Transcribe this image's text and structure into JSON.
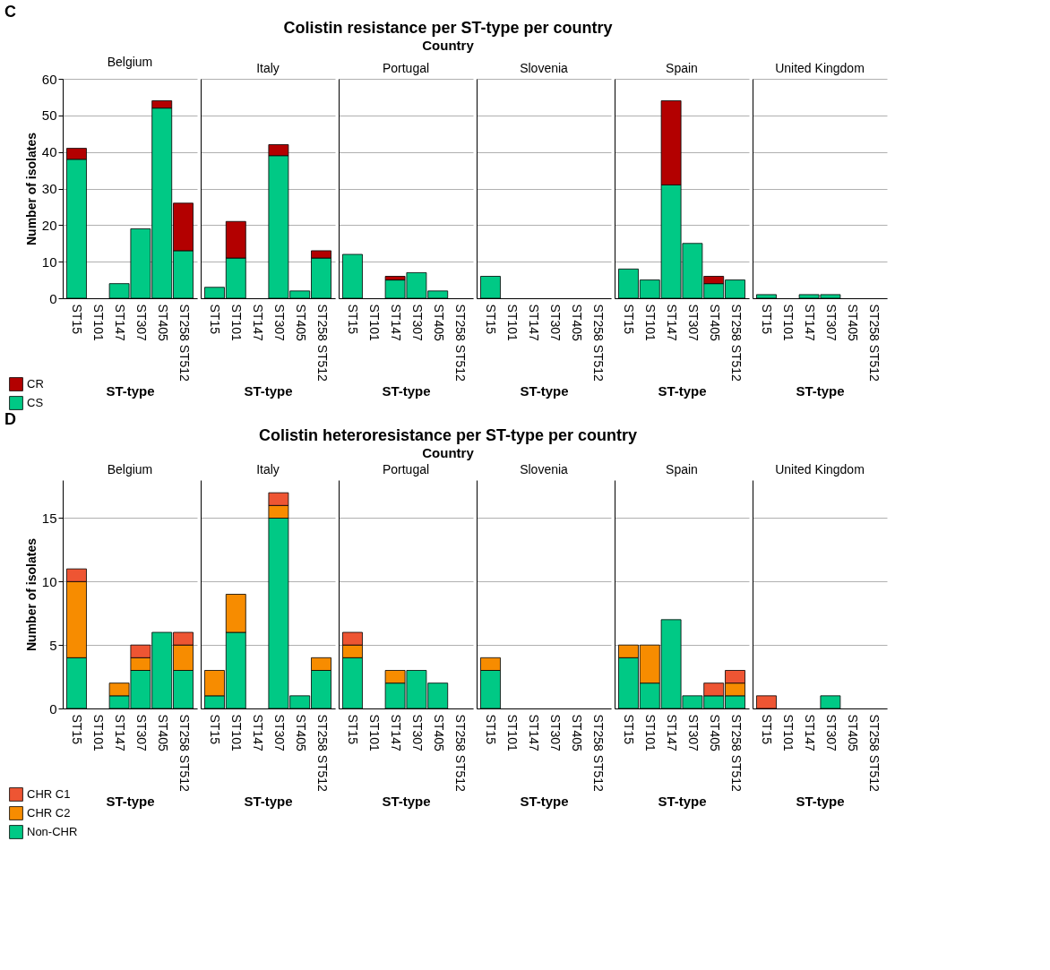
{
  "chart_data": [
    {
      "type": "bar",
      "stacked": true,
      "title": "Belgium",
      "xlabel": "ST-type",
      "ylabel": "Number of isolates",
      "annotations": [
        "C",
        "Colistin resistance per ST-type per country",
        "Country"
      ],
      "categories": [
        "ST15",
        "ST101",
        "ST147",
        "ST307",
        "ST405",
        "ST258 ST512"
      ],
      "ylim": [
        0,
        60
      ],
      "yticks": [
        0,
        10,
        20,
        30,
        40,
        50,
        60
      ],
      "grid": "y",
      "legend": "bottom left",
      "series": [
        {
          "name": "CS",
          "color": "#00c985",
          "values": [
            38,
            null,
            4,
            19,
            52,
            13
          ]
        },
        {
          "name": "CR",
          "color": "#b30000",
          "values": [
            3,
            null,
            null,
            null,
            2,
            13
          ]
        }
      ]
    },
    {
      "type": "bar",
      "stacked": true,
      "title": "Italy",
      "xlabel": "ST-type",
      "categories": [
        "ST15",
        "ST101",
        "ST147",
        "ST307",
        "ST405",
        "ST258 ST512"
      ],
      "ylim": [
        0,
        60
      ],
      "yticks": [
        0,
        10,
        20,
        30,
        40,
        50,
        60
      ],
      "grid": "y",
      "tick_labels": "x",
      "series": [
        {
          "color": "#00c985",
          "values": [
            3,
            11,
            null,
            39,
            2,
            11
          ]
        },
        {
          "color": "#b30000",
          "values": [
            null,
            10,
            null,
            3,
            null,
            2
          ]
        }
      ]
    },
    {
      "type": "bar",
      "stacked": true,
      "title": "Portugal",
      "xlabel": "ST-type",
      "categories": [
        "ST15",
        "ST101",
        "ST147",
        "ST307",
        "ST405",
        "ST258 ST512"
      ],
      "ylim": [
        0,
        60
      ],
      "yticks": [
        0,
        10,
        20,
        30,
        40,
        50,
        60
      ],
      "grid": "y",
      "tick_labels": "x",
      "series": [
        {
          "color": "#00c985",
          "values": [
            12,
            null,
            5,
            7,
            2,
            null
          ]
        },
        {
          "color": "#b30000",
          "values": [
            null,
            null,
            1,
            null,
            null,
            null
          ]
        }
      ]
    },
    {
      "type": "bar",
      "stacked": true,
      "title": "Slovenia",
      "xlabel": "ST-type",
      "categories": [
        "ST15",
        "ST101",
        "ST147",
        "ST307",
        "ST405",
        "ST258 ST512"
      ],
      "ylim": [
        0,
        60
      ],
      "yticks": [
        0,
        10,
        20,
        30,
        40,
        50,
        60
      ],
      "grid": "y",
      "tick_labels": "x",
      "series": [
        {
          "color": "#00c985",
          "values": [
            6,
            null,
            null,
            null,
            null,
            null
          ]
        }
      ]
    },
    {
      "type": "bar",
      "stacked": true,
      "title": "Spain",
      "xlabel": "ST-type",
      "categories": [
        "ST15",
        "ST101",
        "ST147",
        "ST307",
        "ST405",
        "ST258 ST512"
      ],
      "ylim": [
        0,
        60
      ],
      "yticks": [
        0,
        10,
        20,
        30,
        40,
        50,
        60
      ],
      "grid": "y",
      "tick_labels": "x",
      "series": [
        {
          "color": "#00c985",
          "values": [
            8,
            5,
            31,
            15,
            4,
            5
          ]
        },
        {
          "color": "#b30000",
          "values": [
            null,
            null,
            23,
            null,
            2,
            null
          ]
        }
      ]
    },
    {
      "type": "bar",
      "stacked": true,
      "title": "United Kingdom",
      "xlabel": "ST-type",
      "categories": [
        "ST15",
        "ST101",
        "ST147",
        "ST307",
        "ST405",
        "ST258 ST512"
      ],
      "ylim": [
        0,
        60
      ],
      "yticks": [
        0,
        10,
        20,
        30,
        40,
        50,
        60
      ],
      "grid": "y",
      "tick_labels": "x",
      "series": [
        {
          "color": "#00c985",
          "values": [
            1,
            null,
            1,
            1,
            null,
            null
          ]
        }
      ]
    },
    {
      "type": "bar",
      "stacked": true,
      "title": "Belgium",
      "xlabel": "ST-type",
      "ylabel": "Number of isolates",
      "annotations": [
        "D",
        "Colistin heteroresistance per ST-type per country",
        "Country"
      ],
      "categories": [
        "ST15",
        "ST101",
        "ST147",
        "ST307",
        "ST405",
        "ST258 ST512"
      ],
      "ylim": [
        0,
        18
      ],
      "yticks": [
        0,
        5,
        10,
        15
      ],
      "grid": "y",
      "legend": "bottom left",
      "series": [
        {
          "name": "Non-CHR",
          "color": "#00c985",
          "values": [
            4,
            null,
            1,
            3,
            6,
            3
          ]
        },
        {
          "name": "CHR C2",
          "color": "#f78c00",
          "values": [
            6,
            null,
            1,
            1,
            null,
            2
          ]
        },
        {
          "name": "CHR C1",
          "color": "#ee5533",
          "values": [
            1,
            null,
            null,
            1,
            null,
            1
          ]
        }
      ]
    },
    {
      "type": "bar",
      "stacked": true,
      "title": "Italy",
      "xlabel": "ST-type",
      "categories": [
        "ST15",
        "ST101",
        "ST147",
        "ST307",
        "ST405",
        "ST258 ST512"
      ],
      "ylim": [
        0,
        18
      ],
      "yticks": [
        0,
        5,
        10,
        15
      ],
      "grid": "y",
      "tick_labels": "x",
      "series": [
        {
          "color": "#00c985",
          "values": [
            1,
            6,
            null,
            15,
            1,
            3
          ]
        },
        {
          "color": "#f78c00",
          "values": [
            2,
            3,
            null,
            1,
            null,
            1
          ]
        },
        {
          "color": "#ee5533",
          "values": [
            null,
            null,
            null,
            1,
            null,
            null
          ]
        }
      ]
    },
    {
      "type": "bar",
      "stacked": true,
      "title": "Portugal",
      "xlabel": "ST-type",
      "categories": [
        "ST15",
        "ST101",
        "ST147",
        "ST307",
        "ST405",
        "ST258 ST512"
      ],
      "ylim": [
        0,
        18
      ],
      "yticks": [
        0,
        5,
        10,
        15
      ],
      "grid": "y",
      "tick_labels": "x",
      "series": [
        {
          "color": "#00c985",
          "values": [
            4,
            null,
            2,
            3,
            2,
            null
          ]
        },
        {
          "color": "#f78c00",
          "values": [
            1,
            null,
            1,
            null,
            null,
            null
          ]
        },
        {
          "color": "#ee5533",
          "values": [
            1,
            null,
            null,
            null,
            null,
            null
          ]
        }
      ]
    },
    {
      "type": "bar",
      "stacked": true,
      "title": "Slovenia",
      "xlabel": "ST-type",
      "categories": [
        "ST15",
        "ST101",
        "ST147",
        "ST307",
        "ST405",
        "ST258 ST512"
      ],
      "ylim": [
        0,
        18
      ],
      "yticks": [
        0,
        5,
        10,
        15
      ],
      "grid": "y",
      "tick_labels": "x",
      "series": [
        {
          "color": "#00c985",
          "values": [
            3,
            null,
            null,
            null,
            null,
            null
          ]
        },
        {
          "color": "#f78c00",
          "values": [
            1,
            null,
            null,
            null,
            null,
            null
          ]
        }
      ]
    },
    {
      "type": "bar",
      "stacked": true,
      "title": "Spain",
      "xlabel": "ST-type",
      "categories": [
        "ST15",
        "ST101",
        "ST147",
        "ST307",
        "ST405",
        "ST258 ST512"
      ],
      "ylim": [
        0,
        18
      ],
      "yticks": [
        0,
        5,
        10,
        15
      ],
      "grid": "y",
      "tick_labels": "x",
      "series": [
        {
          "color": "#00c985",
          "values": [
            4,
            2,
            7,
            1,
            1,
            1
          ]
        },
        {
          "color": "#f78c00",
          "values": [
            1,
            3,
            null,
            null,
            null,
            1
          ]
        },
        {
          "color": "#ee5533",
          "values": [
            null,
            null,
            null,
            null,
            1,
            1
          ]
        }
      ]
    },
    {
      "type": "bar",
      "stacked": true,
      "title": "United Kingdom",
      "xlabel": "ST-type",
      "categories": [
        "ST15",
        "ST101",
        "ST147",
        "ST307",
        "ST405",
        "ST258 ST512"
      ],
      "ylim": [
        0,
        18
      ],
      "yticks": [
        0,
        5,
        10,
        15
      ],
      "grid": "y",
      "tick_labels": "x",
      "series": [
        {
          "color": "#00c985",
          "values": [
            null,
            null,
            null,
            1,
            null,
            null
          ]
        },
        {
          "color": "#ee5533",
          "values": [
            1,
            null,
            null,
            null,
            null,
            null
          ]
        }
      ]
    }
  ]
}
